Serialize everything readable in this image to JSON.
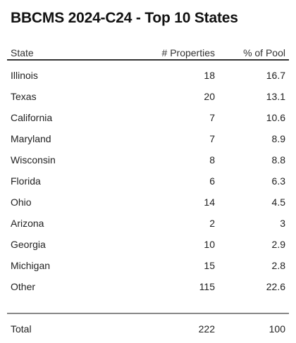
{
  "title": "BBCMS 2024-C24 - Top 10 States",
  "table": {
    "headers": {
      "state": "State",
      "properties": "# Properties",
      "pct": "% of Pool"
    },
    "rows": [
      {
        "state": "Illinois",
        "properties": "18",
        "pct": "16.7"
      },
      {
        "state": "Texas",
        "properties": "20",
        "pct": "13.1"
      },
      {
        "state": "California",
        "properties": "7",
        "pct": "10.6"
      },
      {
        "state": "Maryland",
        "properties": "7",
        "pct": "8.9"
      },
      {
        "state": "Wisconsin",
        "properties": "8",
        "pct": "8.8"
      },
      {
        "state": "Florida",
        "properties": "6",
        "pct": "6.3"
      },
      {
        "state": "Ohio",
        "properties": "14",
        "pct": "4.5"
      },
      {
        "state": "Arizona",
        "properties": "2",
        "pct": "3"
      },
      {
        "state": "Georgia",
        "properties": "10",
        "pct": "2.9"
      },
      {
        "state": "Michigan",
        "properties": "15",
        "pct": "2.8"
      },
      {
        "state": "Other",
        "properties": "115",
        "pct": "22.6"
      }
    ],
    "total": {
      "label": "Total",
      "properties": "222",
      "pct": "100"
    }
  }
}
